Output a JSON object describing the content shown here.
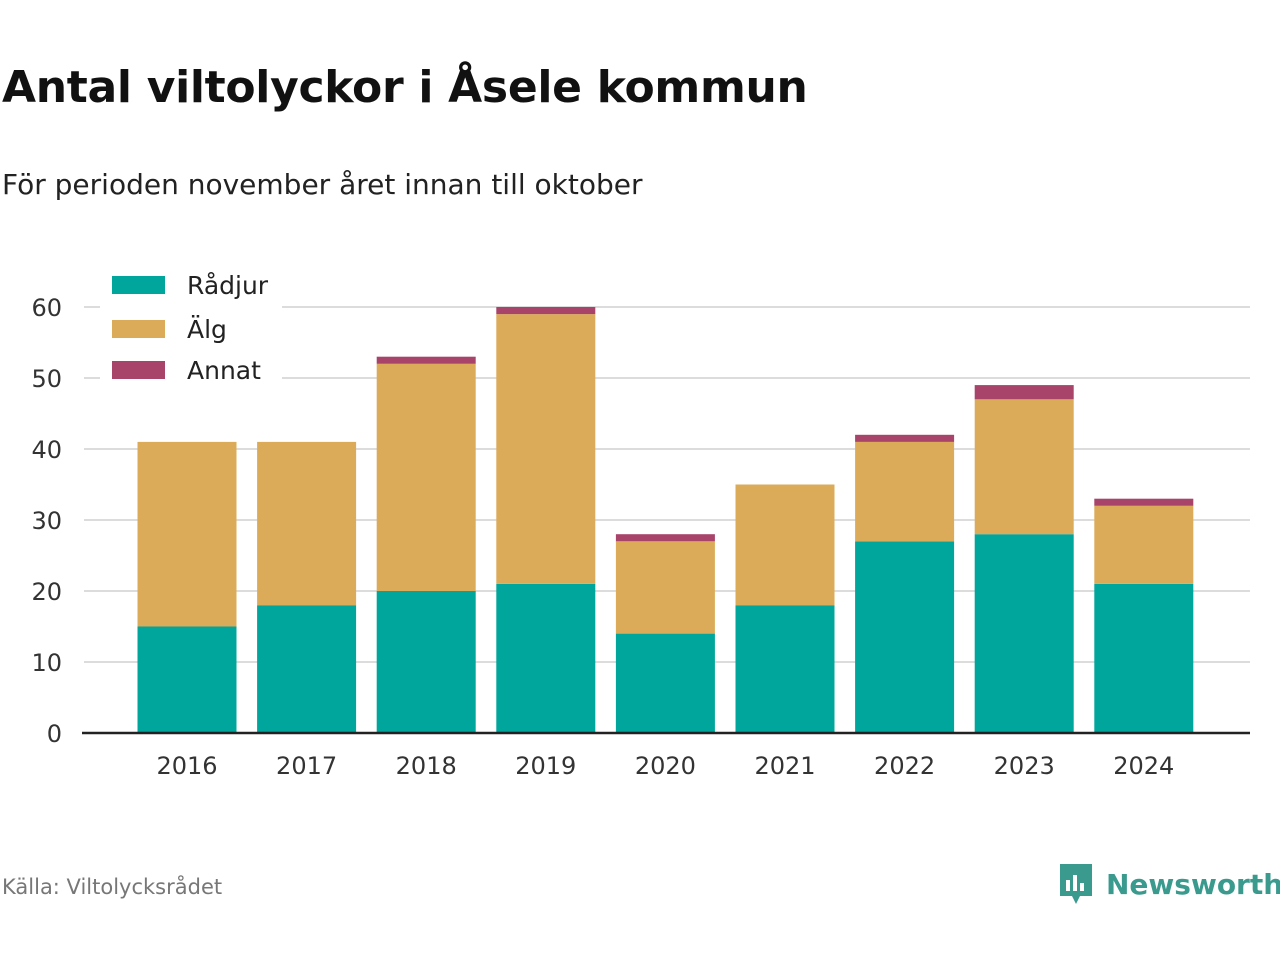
{
  "header": {
    "title": "Antal viltolyckor i Åsele kommun",
    "subtitle": "För perioden november året innan till oktober"
  },
  "footer": {
    "source": "Källa: Viltolycksrådet",
    "brand": "Newsworthy",
    "brand_icon": "bar-chart-speech-bubble-icon",
    "brand_color": "#3a9a8e"
  },
  "chart_data": {
    "type": "bar",
    "stacked": true,
    "categories": [
      "2016",
      "2017",
      "2018",
      "2019",
      "2020",
      "2021",
      "2022",
      "2023",
      "2024"
    ],
    "series": [
      {
        "name": "Rådjur",
        "color": "#00a59b",
        "values": [
          15,
          18,
          20,
          21,
          14,
          18,
          27,
          28,
          21
        ]
      },
      {
        "name": "Älg",
        "color": "#dbab5a",
        "values": [
          26,
          23,
          32,
          38,
          13,
          17,
          14,
          19,
          11
        ]
      },
      {
        "name": "Annat",
        "color": "#a8436a",
        "values": [
          0,
          0,
          1,
          1,
          1,
          0,
          1,
          2,
          1
        ]
      }
    ],
    "ylim": [
      0,
      60
    ],
    "yticks": [
      0,
      10,
      20,
      30,
      40,
      50,
      60
    ],
    "grid": true,
    "legend": "top-left"
  }
}
